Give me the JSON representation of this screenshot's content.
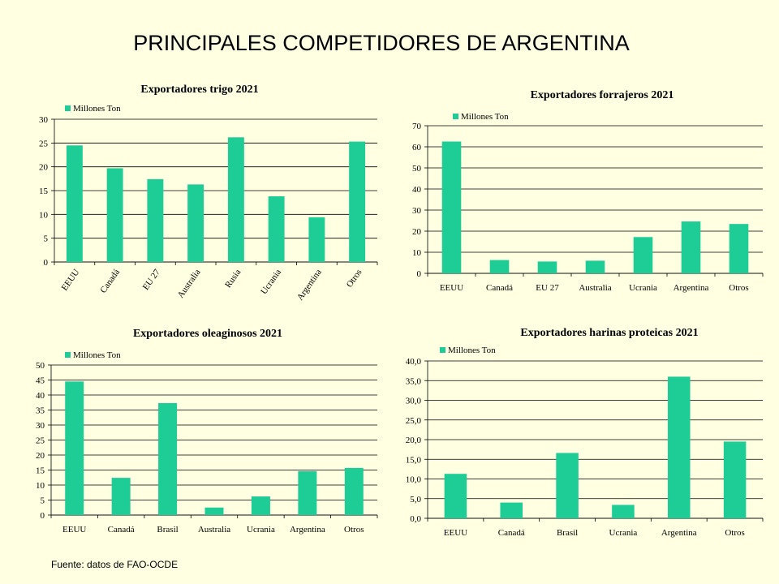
{
  "page": {
    "title": "PRINCIPALES COMPETIDORES DE ARGENTINA",
    "source": "Fuente: datos de FAO-OCDE"
  },
  "colors": {
    "background": "#FFFFE1",
    "bar": "#1ECC96",
    "gridline": "#000000"
  },
  "chart_data": [
    {
      "type": "bar",
      "title": "Exportadores trigo 2021",
      "categories": [
        "EEUU",
        "Canadá",
        "EU 27",
        "Australia",
        "Rusia",
        "Ucrania",
        "Argentina",
        "Otros"
      ],
      "series": [
        {
          "name": "Millones Ton",
          "values": [
            24.5,
            19.7,
            17.4,
            16.3,
            26.2,
            13.8,
            9.4,
            25.3
          ]
        }
      ],
      "ylim": [
        0,
        30
      ],
      "yticks": [
        "0",
        "5",
        "10",
        "15",
        "20",
        "25",
        "30"
      ],
      "xlabel": "",
      "ylabel": "",
      "grid": true,
      "legend": "top-left",
      "xlabel_rotation": "rotated"
    },
    {
      "type": "bar",
      "title": "Exportadores forrajeros  2021",
      "categories": [
        "EEUU",
        "Canadá",
        "EU 27",
        "Australia",
        "Ucrania",
        "Argentina",
        "Otros"
      ],
      "series": [
        {
          "name": "Millones Ton",
          "values": [
            62.5,
            6.3,
            5.6,
            6.0,
            17.2,
            24.6,
            23.4
          ]
        }
      ],
      "ylim": [
        0,
        70
      ],
      "yticks": [
        "0",
        "10",
        "20",
        "30",
        "40",
        "50",
        "60",
        "70"
      ],
      "xlabel": "",
      "ylabel": "",
      "grid": true,
      "legend": "top-left",
      "xlabel_rotation": "none"
    },
    {
      "type": "bar",
      "title": "Exportadores oleaginosos 2021",
      "categories": [
        "EEUU",
        "Canadá",
        "Brasil",
        "Australia",
        "Ucrania",
        "Argentina",
        "Otros"
      ],
      "series": [
        {
          "name": "Millones Ton",
          "values": [
            44.5,
            12.4,
            37.3,
            2.5,
            6.2,
            14.6,
            15.7
          ]
        }
      ],
      "ylim": [
        0,
        50
      ],
      "yticks": [
        "0",
        "5",
        "10",
        "15",
        "20",
        "25",
        "30",
        "35",
        "40",
        "45",
        "50"
      ],
      "xlabel": "",
      "ylabel": "",
      "grid": true,
      "legend": "top-left",
      "xlabel_rotation": "none"
    },
    {
      "type": "bar",
      "title": "Exportadores harinas proteicas 2021",
      "categories": [
        "EEUU",
        "Canadá",
        "Brasil",
        "Ucrania",
        "Argentina",
        "Otros"
      ],
      "series": [
        {
          "name": "Millones Ton",
          "values": [
            11.3,
            4.0,
            16.6,
            3.4,
            36.0,
            19.5
          ]
        }
      ],
      "ylim": [
        0,
        40
      ],
      "yticks": [
        "0,0",
        "5,0",
        "10,0",
        "15,0",
        "20,0",
        "25,0",
        "30,0",
        "35,0",
        "40,0"
      ],
      "xlabel": "",
      "ylabel": "",
      "grid": true,
      "legend": "top-left",
      "xlabel_rotation": "none"
    }
  ]
}
